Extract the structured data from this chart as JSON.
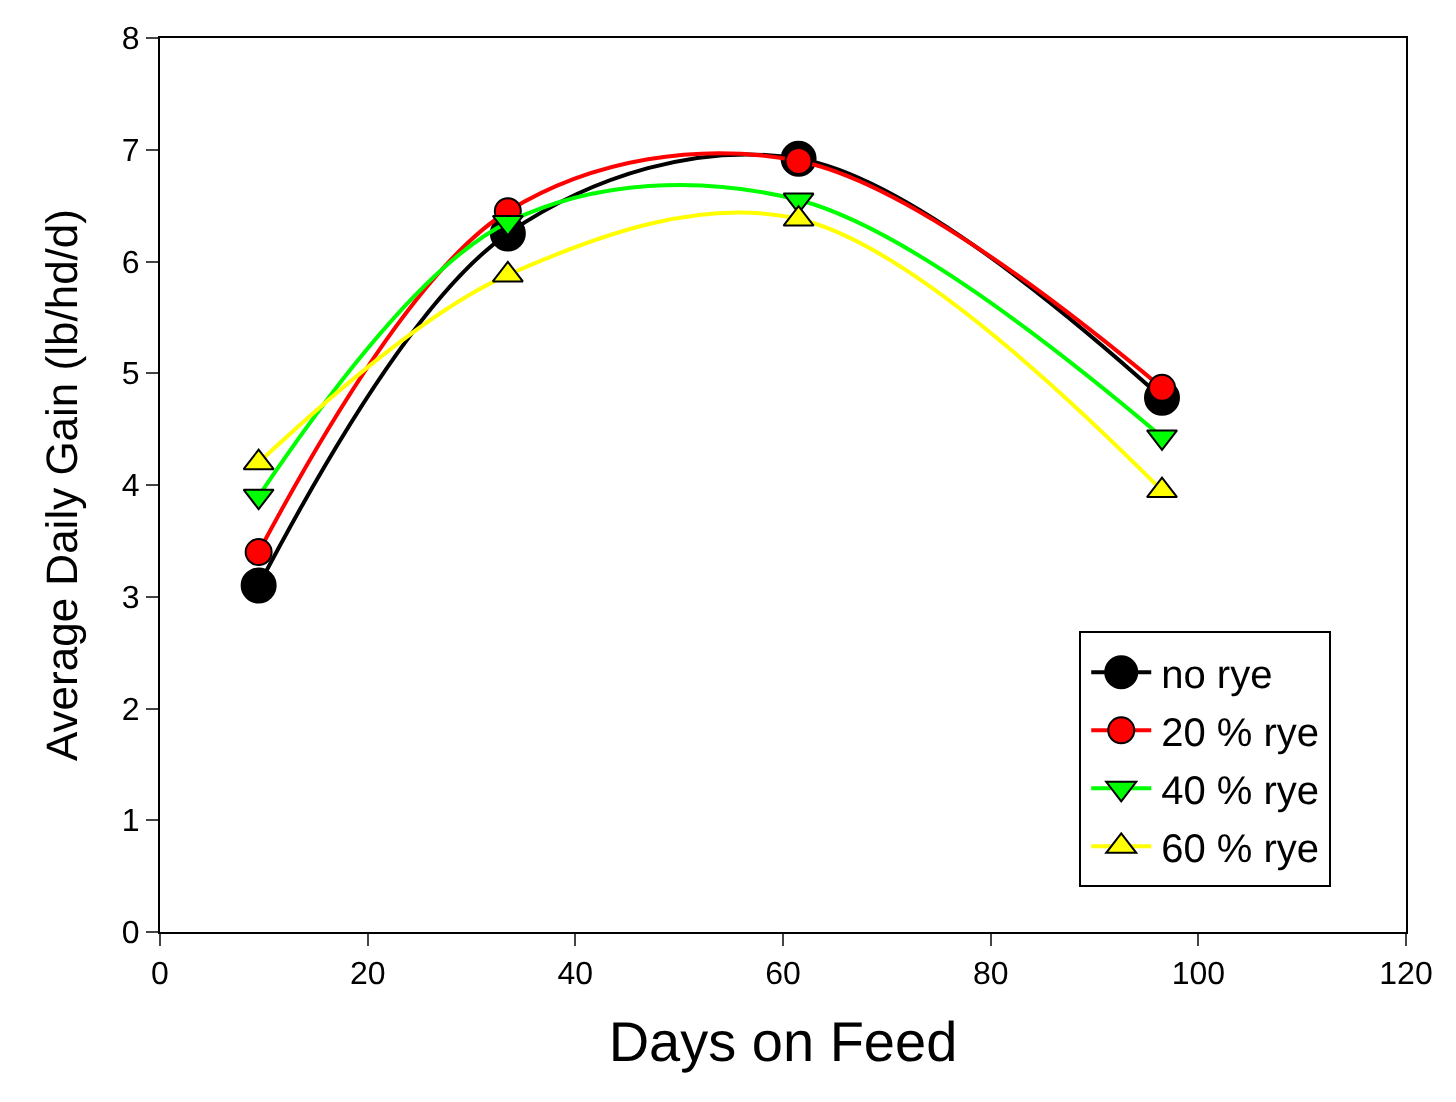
{
  "chart_data": {
    "type": "line",
    "xlabel": "Days on Feed",
    "ylabel": "Average Daily Gain (lb/hd/d)",
    "x": [
      9.5,
      33.5,
      61.5,
      96.5
    ],
    "series": [
      {
        "name": "no rye",
        "color": "#000000",
        "marker": "circle",
        "values": [
          3.1,
          6.25,
          6.92,
          4.78
        ]
      },
      {
        "name": "20 % rye",
        "color": "#ff0000",
        "marker": "circle",
        "values": [
          3.4,
          6.45,
          6.9,
          4.87
        ]
      },
      {
        "name": "40 % rye",
        "color": "#00ff00",
        "marker": "triangle-down",
        "values": [
          3.9,
          6.35,
          6.55,
          4.43
        ]
      },
      {
        "name": "60 % rye",
        "color": "#ffff00",
        "marker": "triangle",
        "values": [
          4.2,
          5.88,
          6.38,
          3.95
        ]
      }
    ],
    "xlim": [
      0,
      120
    ],
    "xticks": [
      0,
      20,
      40,
      60,
      80,
      100,
      120
    ],
    "ylim": [
      0,
      8
    ],
    "yticks": [
      0,
      1,
      2,
      3,
      4,
      5,
      6,
      7,
      8
    ],
    "legend": "bottom right",
    "line_style": "solid"
  }
}
